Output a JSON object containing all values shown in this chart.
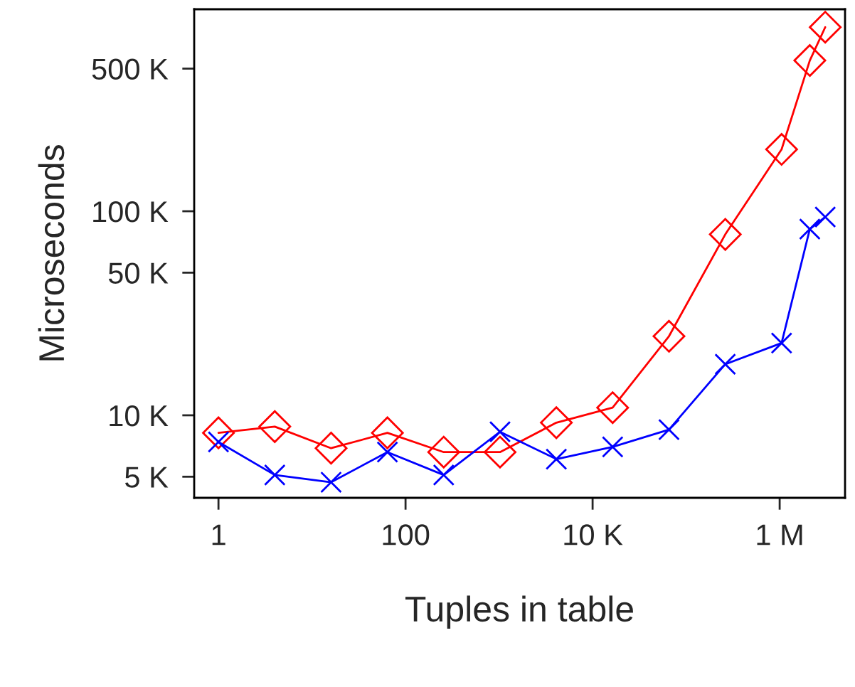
{
  "chart_data": {
    "type": "line",
    "xlabel": "Tuples in table",
    "ylabel": "Microseconds",
    "log": "xy",
    "grid": false,
    "legend": false,
    "xlim": [
      0.55,
      5000000
    ],
    "ylim": [
      3940,
      977000
    ],
    "xticks": [
      {
        "value": 1,
        "label": "1"
      },
      {
        "value": 100,
        "label": "100"
      },
      {
        "value": 10000,
        "label": "10 K"
      },
      {
        "value": 1000000,
        "label": "1 M"
      }
    ],
    "yticks": [
      {
        "value": 5000,
        "label": "5 K"
      },
      {
        "value": 10000,
        "label": "10 K"
      },
      {
        "value": 50000,
        "label": "50 K"
      },
      {
        "value": 100000,
        "label": "100 K"
      },
      {
        "value": 500000,
        "label": "500 K"
      }
    ],
    "x": [
      1,
      4,
      16,
      64,
      256,
      1024,
      4096,
      16384,
      65536,
      262144,
      1048576,
      2100000,
      3070000
    ],
    "series": [
      {
        "color": "#ff0000",
        "marker": "diamond",
        "values": [
          8200,
          8800,
          6900,
          8200,
          6600,
          6600,
          9200,
          10900,
          24400,
          77000,
          201000,
          548000,
          798000
        ]
      },
      {
        "color": "#0000ff",
        "marker": "cross",
        "values": [
          7400,
          5100,
          4700,
          6600,
          5100,
          8300,
          6100,
          7000,
          8500,
          17800,
          22600,
          81800,
          93700
        ]
      }
    ]
  }
}
